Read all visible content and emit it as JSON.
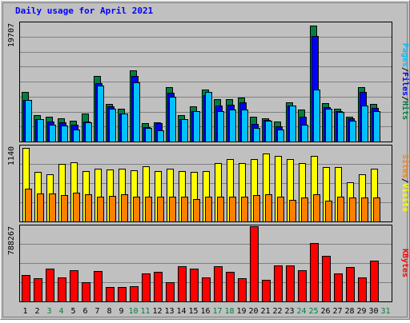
{
  "title": "Daily usage for April 2021",
  "colors": {
    "background": "#c0c0c0",
    "hits": "#008040",
    "files": "#0000ff",
    "pages": "#00c0ff",
    "visits": "#ffff00",
    "sites": "#ff8000",
    "kbytes": "#ff0000",
    "weekend_label": "#008040"
  },
  "chart_data": [
    {
      "type": "bar",
      "name": "hits-files-pages",
      "max_label": "19707",
      "ylim": [
        0,
        19707
      ],
      "categories": [
        "1",
        "2",
        "3",
        "4",
        "5",
        "6",
        "7",
        "8",
        "9",
        "10",
        "11",
        "12",
        "13",
        "14",
        "15",
        "16",
        "17",
        "18",
        "19",
        "20",
        "21",
        "22",
        "23",
        "24",
        "25",
        "26",
        "27",
        "28",
        "29",
        "30",
        "31"
      ],
      "series": [
        {
          "name": "Hits",
          "values": [
            8200,
            4400,
            4100,
            3800,
            3400,
            4600,
            10900,
            6300,
            5500,
            11800,
            3100,
            3200,
            9000,
            4400,
            5800,
            8700,
            7000,
            7100,
            7300,
            4100,
            3800,
            3300,
            6500,
            5300,
            19300,
            6400,
            5500,
            4100,
            9100,
            6200,
            null
          ]
        },
        {
          "name": "Files",
          "values": [
            6900,
            3700,
            3300,
            3200,
            2800,
            3300,
            9700,
            5900,
            4700,
            10900,
            2400,
            3100,
            8100,
            3700,
            5000,
            7700,
            6000,
            6100,
            6500,
            2900,
            3600,
            2500,
            6000,
            4100,
            17600,
            5700,
            5100,
            3800,
            8200,
            5600,
            null
          ]
        },
        {
          "name": "Pages",
          "values": [
            6900,
            3700,
            2800,
            2600,
            2000,
            3200,
            9300,
            5500,
            4600,
            9800,
            2300,
            1900,
            7500,
            3700,
            5000,
            8300,
            5000,
            5300,
            5300,
            2300,
            3500,
            2000,
            6000,
            2800,
            8700,
            5500,
            4900,
            3400,
            6000,
            5100,
            null
          ]
        }
      ],
      "ylabels": [
        "Pages",
        "Files",
        "Hits"
      ]
    },
    {
      "type": "bar",
      "name": "visits-sites",
      "max_label": "1140",
      "ylim": [
        0,
        1140
      ],
      "categories": [
        "1",
        "2",
        "3",
        "4",
        "5",
        "6",
        "7",
        "8",
        "9",
        "10",
        "11",
        "12",
        "13",
        "14",
        "15",
        "16",
        "17",
        "18",
        "19",
        "20",
        "21",
        "22",
        "23",
        "24",
        "25",
        "26",
        "27",
        "28",
        "29",
        "30",
        "31"
      ],
      "series": [
        {
          "name": "Visits",
          "values": [
            1110,
            750,
            710,
            870,
            900,
            760,
            800,
            790,
            800,
            780,
            840,
            760,
            800,
            760,
            750,
            770,
            880,
            950,
            880,
            950,
            1030,
            990,
            940,
            880,
            1000,
            830,
            830,
            590,
            710,
            800,
            null
          ]
        },
        {
          "name": "Sites",
          "values": [
            500,
            420,
            420,
            400,
            440,
            410,
            380,
            390,
            410,
            380,
            380,
            380,
            380,
            380,
            340,
            370,
            380,
            370,
            380,
            400,
            410,
            380,
            330,
            360,
            410,
            320,
            370,
            360,
            360,
            360,
            null
          ]
        }
      ],
      "ylabels": [
        "Sites",
        "Visits"
      ]
    },
    {
      "type": "bar",
      "name": "kbytes",
      "max_label": "788267",
      "ylim": [
        0,
        788267
      ],
      "categories": [
        "1",
        "2",
        "3",
        "4",
        "5",
        "6",
        "7",
        "8",
        "9",
        "10",
        "11",
        "12",
        "13",
        "14",
        "15",
        "16",
        "17",
        "18",
        "19",
        "20",
        "21",
        "22",
        "23",
        "24",
        "25",
        "26",
        "27",
        "28",
        "29",
        "30",
        "31"
      ],
      "series": [
        {
          "name": "KBytes",
          "values": [
            280000,
            240000,
            340000,
            250000,
            330000,
            200000,
            320000,
            150000,
            155000,
            160000,
            290000,
            310000,
            200000,
            370000,
            340000,
            250000,
            370000,
            310000,
            240000,
            788000,
            230000,
            380000,
            380000,
            330000,
            610000,
            480000,
            290000,
            360000,
            250000,
            430000,
            null
          ]
        }
      ],
      "ylabels": [
        "KBytes"
      ]
    }
  ],
  "x_labels": [
    {
      "text": "1",
      "weekend": false
    },
    {
      "text": "2",
      "weekend": false
    },
    {
      "text": "3",
      "weekend": true
    },
    {
      "text": "4",
      "weekend": true
    },
    {
      "text": "5",
      "weekend": false
    },
    {
      "text": "6",
      "weekend": false
    },
    {
      "text": "7",
      "weekend": false
    },
    {
      "text": "8",
      "weekend": false
    },
    {
      "text": "9",
      "weekend": false
    },
    {
      "text": "10",
      "weekend": true
    },
    {
      "text": "11",
      "weekend": true
    },
    {
      "text": "12",
      "weekend": false
    },
    {
      "text": "13",
      "weekend": false
    },
    {
      "text": "14",
      "weekend": false
    },
    {
      "text": "15",
      "weekend": false
    },
    {
      "text": "16",
      "weekend": false
    },
    {
      "text": "17",
      "weekend": true
    },
    {
      "text": "18",
      "weekend": true
    },
    {
      "text": "19",
      "weekend": false
    },
    {
      "text": "20",
      "weekend": false
    },
    {
      "text": "21",
      "weekend": false
    },
    {
      "text": "22",
      "weekend": false
    },
    {
      "text": "23",
      "weekend": false
    },
    {
      "text": "24",
      "weekend": true
    },
    {
      "text": "25",
      "weekend": true
    },
    {
      "text": "26",
      "weekend": false
    },
    {
      "text": "27",
      "weekend": false
    },
    {
      "text": "28",
      "weekend": false
    },
    {
      "text": "29",
      "weekend": false
    },
    {
      "text": "30",
      "weekend": false
    },
    {
      "text": "31",
      "weekend": true
    }
  ]
}
